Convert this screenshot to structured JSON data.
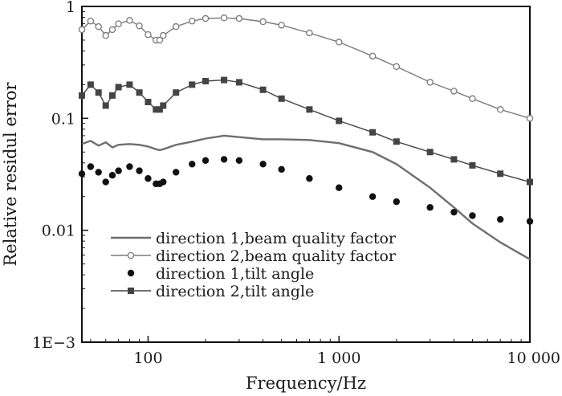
{
  "chart_data": {
    "type": "line",
    "xscale": "log",
    "yscale": "log",
    "xlim": [
      45,
      10000
    ],
    "ylim": [
      0.001,
      1
    ],
    "xlabel": "Frequency/Hz",
    "ylabel": "Relative residul error",
    "x_ticks": [
      {
        "value": 100,
        "label": "100"
      },
      {
        "value": 1000,
        "label": "1 000"
      },
      {
        "value": 10000,
        "label": "10 000"
      }
    ],
    "y_ticks": [
      {
        "value": 1,
        "label": "1"
      },
      {
        "value": 0.1,
        "label": "0.1"
      },
      {
        "value": 0.01,
        "label": "0.01"
      },
      {
        "value": 0.001,
        "label": "1E−3"
      }
    ],
    "grid": false,
    "legend_position": "bottom-left",
    "series": [
      {
        "name": "direction 1,beam quality factor",
        "style": "line",
        "color": "#6e6e6e",
        "x": [
          45,
          50,
          55,
          60,
          65,
          70,
          80,
          90,
          100,
          110,
          115,
          120,
          140,
          170,
          200,
          250,
          300,
          400,
          500,
          700,
          1000,
          1500,
          2000,
          3000,
          4000,
          5000,
          7000,
          10000
        ],
        "y": [
          0.059,
          0.063,
          0.057,
          0.061,
          0.055,
          0.058,
          0.059,
          0.058,
          0.056,
          0.053,
          0.052,
          0.053,
          0.058,
          0.062,
          0.066,
          0.07,
          0.068,
          0.065,
          0.065,
          0.064,
          0.06,
          0.05,
          0.039,
          0.024,
          0.016,
          0.0115,
          0.0078,
          0.0055
        ]
      },
      {
        "name": "direction 2,beam quality factor",
        "style": "line-open-circle",
        "color": "#7a7a7a",
        "x": [
          45,
          50,
          55,
          60,
          65,
          70,
          80,
          90,
          100,
          110,
          115,
          120,
          140,
          170,
          200,
          250,
          300,
          400,
          500,
          700,
          1000,
          1500,
          2000,
          3000,
          4000,
          5000,
          7000,
          10000
        ],
        "y": [
          0.62,
          0.74,
          0.66,
          0.55,
          0.62,
          0.7,
          0.75,
          0.67,
          0.56,
          0.5,
          0.5,
          0.55,
          0.66,
          0.74,
          0.78,
          0.79,
          0.78,
          0.73,
          0.68,
          0.58,
          0.48,
          0.36,
          0.29,
          0.21,
          0.175,
          0.15,
          0.12,
          0.1
        ]
      },
      {
        "name": "direction 1,tilt angle",
        "style": "filled-circle",
        "color": "#111111",
        "x": [
          45,
          50,
          55,
          60,
          65,
          70,
          80,
          90,
          100,
          110,
          115,
          120,
          140,
          170,
          200,
          250,
          300,
          400,
          500,
          700,
          1000,
          1500,
          2000,
          3000,
          4000,
          5000,
          7000,
          10000
        ],
        "y": [
          0.032,
          0.037,
          0.033,
          0.027,
          0.031,
          0.034,
          0.037,
          0.034,
          0.029,
          0.026,
          0.026,
          0.027,
          0.033,
          0.039,
          0.042,
          0.043,
          0.042,
          0.039,
          0.035,
          0.029,
          0.024,
          0.02,
          0.018,
          0.016,
          0.0145,
          0.0135,
          0.0125,
          0.012
        ]
      },
      {
        "name": "direction 2,tilt angle",
        "style": "line-filled-square",
        "color": "#444444",
        "x": [
          45,
          50,
          55,
          60,
          65,
          70,
          80,
          90,
          100,
          110,
          115,
          120,
          140,
          170,
          200,
          250,
          300,
          400,
          500,
          700,
          1000,
          1500,
          2000,
          3000,
          4000,
          5000,
          7000,
          10000
        ],
        "y": [
          0.16,
          0.2,
          0.17,
          0.13,
          0.16,
          0.19,
          0.2,
          0.17,
          0.14,
          0.12,
          0.12,
          0.13,
          0.17,
          0.2,
          0.215,
          0.22,
          0.21,
          0.18,
          0.15,
          0.12,
          0.095,
          0.075,
          0.062,
          0.05,
          0.043,
          0.038,
          0.032,
          0.027
        ]
      }
    ]
  }
}
